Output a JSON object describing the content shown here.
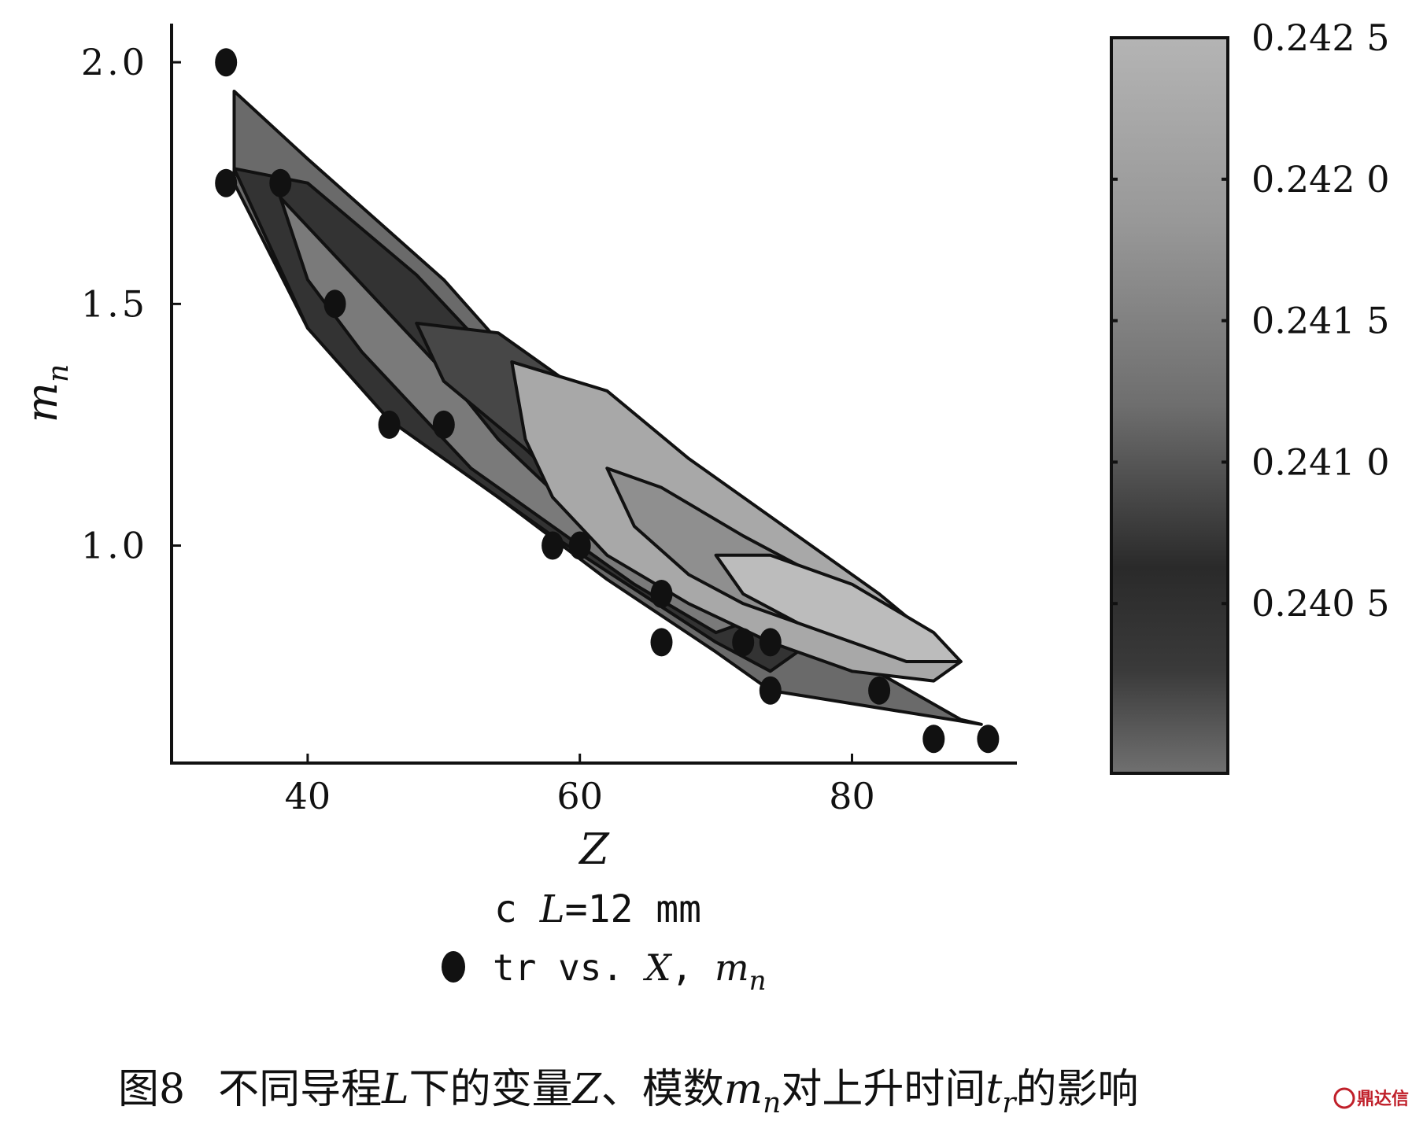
{
  "chart_data": {
    "type": "contour",
    "subtitle_prefix": "c ",
    "subtitle_var": "L",
    "subtitle_rest": "=12 mm",
    "xlabel": "Z",
    "ylabel_main": "m",
    "ylabel_sub": "n",
    "xlim": [
      30,
      92
    ],
    "ylim": [
      0.55,
      2.08
    ],
    "x_ticks": [
      {
        "value": 40,
        "label": "40"
      },
      {
        "value": 60,
        "label": "60"
      },
      {
        "value": 80,
        "label": "80"
      }
    ],
    "y_ticks": [
      {
        "value": 1.0,
        "label": "1.0"
      },
      {
        "value": 1.5,
        "label": "1.5"
      },
      {
        "value": 2.0,
        "label": "2.0"
      }
    ],
    "colorbar": {
      "range": [
        0.2399,
        0.2425
      ],
      "ticks": [
        {
          "value": 0.2425,
          "label": "0.242 5"
        },
        {
          "value": 0.242,
          "label": "0.242 0"
        },
        {
          "value": 0.2415,
          "label": "0.241 5"
        },
        {
          "value": 0.241,
          "label": "0.241 0"
        },
        {
          "value": 0.2405,
          "label": "0.240 5"
        }
      ]
    },
    "legend": {
      "marker": "filled-circle",
      "text_prefix": "tr vs. ",
      "text_x": "X",
      "text_sep": ", ",
      "text_ym": "m",
      "text_yn": "n"
    },
    "points": [
      {
        "x": 34,
        "y": 2.0
      },
      {
        "x": 34,
        "y": 1.75
      },
      {
        "x": 38,
        "y": 1.75
      },
      {
        "x": 42,
        "y": 1.5
      },
      {
        "x": 46,
        "y": 1.25
      },
      {
        "x": 50,
        "y": 1.25
      },
      {
        "x": 58,
        "y": 1.0
      },
      {
        "x": 60,
        "y": 1.0
      },
      {
        "x": 66,
        "y": 0.9
      },
      {
        "x": 66,
        "y": 0.8
      },
      {
        "x": 72,
        "y": 0.8
      },
      {
        "x": 74,
        "y": 0.8
      },
      {
        "x": 74,
        "y": 0.7
      },
      {
        "x": 82,
        "y": 0.7
      },
      {
        "x": 86,
        "y": 0.6
      },
      {
        "x": 90,
        "y": 0.6
      }
    ],
    "regions": [
      {
        "name": "outer",
        "color": "#6a6a6a",
        "polygon": [
          [
            34.6,
            1.94
          ],
          [
            40,
            1.8
          ],
          [
            50,
            1.55
          ],
          [
            56,
            1.36
          ],
          [
            62,
            1.2
          ],
          [
            70,
            0.96
          ],
          [
            78,
            0.8
          ],
          [
            88,
            0.64
          ],
          [
            89.5,
            0.63
          ],
          [
            74,
            0.7
          ],
          [
            70,
            0.78
          ],
          [
            62,
            0.93
          ],
          [
            54,
            1.1
          ],
          [
            46,
            1.26
          ],
          [
            40,
            1.45
          ],
          [
            34.6,
            1.75
          ]
        ]
      },
      {
        "name": "dark-band",
        "color": "#333333",
        "polygon": [
          [
            34.6,
            1.78
          ],
          [
            40,
            1.75
          ],
          [
            48,
            1.56
          ],
          [
            54,
            1.38
          ],
          [
            58,
            1.22
          ],
          [
            64,
            1.05
          ],
          [
            70,
            0.9
          ],
          [
            76,
            0.78
          ],
          [
            74,
            0.74
          ],
          [
            70,
            0.8
          ],
          [
            64,
            0.91
          ],
          [
            58,
            1.02
          ],
          [
            52,
            1.14
          ],
          [
            46,
            1.26
          ],
          [
            40,
            1.45
          ]
        ]
      },
      {
        "name": "mid-band",
        "color": "#7a7a7a",
        "polygon": [
          [
            38,
            1.72
          ],
          [
            42,
            1.6
          ],
          [
            46,
            1.48
          ],
          [
            50,
            1.36
          ],
          [
            54,
            1.22
          ],
          [
            60,
            1.06
          ],
          [
            66,
            0.94
          ],
          [
            72,
            0.84
          ],
          [
            70,
            0.82
          ],
          [
            64,
            0.92
          ],
          [
            58,
            1.04
          ],
          [
            52,
            1.16
          ],
          [
            48,
            1.28
          ],
          [
            44,
            1.4
          ],
          [
            40,
            1.55
          ]
        ]
      },
      {
        "name": "inner-dark",
        "color": "#474747",
        "polygon": [
          [
            48,
            1.46
          ],
          [
            54,
            1.44
          ],
          [
            60,
            1.32
          ],
          [
            66,
            1.18
          ],
          [
            72,
            1.0
          ],
          [
            78,
            0.86
          ],
          [
            82,
            0.76
          ],
          [
            80,
            0.74
          ],
          [
            74,
            0.82
          ],
          [
            68,
            0.92
          ],
          [
            62,
            1.04
          ],
          [
            56,
            1.2
          ],
          [
            50,
            1.34
          ]
        ]
      },
      {
        "name": "light-core",
        "color": "#a8a8a8",
        "polygon": [
          [
            55,
            1.38
          ],
          [
            62,
            1.32
          ],
          [
            68,
            1.18
          ],
          [
            76,
            1.02
          ],
          [
            82,
            0.9
          ],
          [
            88,
            0.76
          ],
          [
            86,
            0.72
          ],
          [
            80,
            0.74
          ],
          [
            74,
            0.8
          ],
          [
            68,
            0.88
          ],
          [
            62,
            0.98
          ],
          [
            58,
            1.1
          ],
          [
            56,
            1.22
          ]
        ]
      },
      {
        "name": "mid-core",
        "color": "#8f8f8f",
        "polygon": [
          [
            62,
            1.16
          ],
          [
            66,
            1.12
          ],
          [
            72,
            1.02
          ],
          [
            76,
            0.96
          ],
          [
            80,
            0.88
          ],
          [
            76,
            0.84
          ],
          [
            72,
            0.88
          ],
          [
            68,
            0.94
          ],
          [
            64,
            1.04
          ]
        ]
      },
      {
        "name": "lightest-core",
        "color": "#bcbcbc",
        "polygon": [
          [
            70,
            0.98
          ],
          [
            74,
            0.98
          ],
          [
            80,
            0.92
          ],
          [
            86,
            0.82
          ],
          [
            88,
            0.76
          ],
          [
            84,
            0.76
          ],
          [
            80,
            0.8
          ],
          [
            76,
            0.84
          ],
          [
            72,
            0.9
          ]
        ]
      }
    ]
  },
  "caption": {
    "fig_label": "图8",
    "part1": "不同导程",
    "var_L": "L",
    "part2": "下的变量",
    "var_Z": "Z",
    "part3": "、模数",
    "var_m": "m",
    "var_m_sub": "n",
    "part4": "对上升时间",
    "var_t": "t",
    "var_t_sub": "r",
    "part5": "的影响"
  },
  "watermark": "鼎达信"
}
